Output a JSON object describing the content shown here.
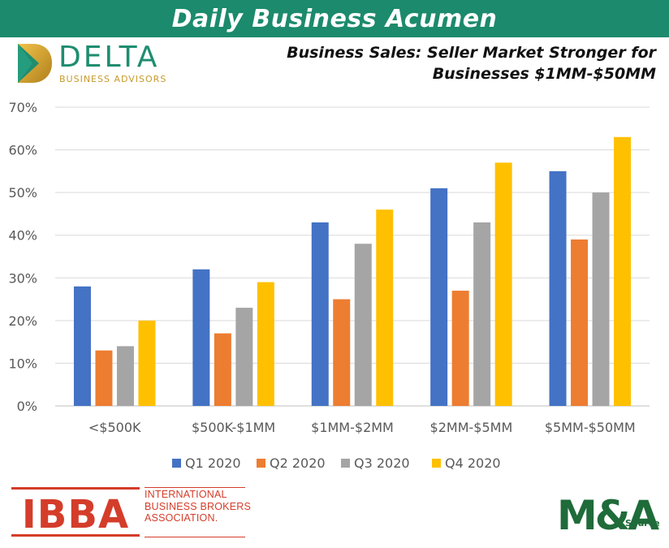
{
  "banner": {
    "title": "Daily Business Acumen"
  },
  "logo": {
    "name": "DELTA",
    "tagline": "BUSINESS ADVISORS"
  },
  "subtitle": {
    "line1": "Business Sales: Seller Market Stronger for",
    "line2": "Businesses $1MM-$50MM"
  },
  "footer": {
    "ibba_mark": "IBBA",
    "ibba_lines": [
      "INTERNATIONAL",
      "BUSINESS BROKERS",
      "ASSOCIATION."
    ],
    "ma_mark": "M&A",
    "ma_word": "Source"
  },
  "colors": {
    "banner": "#1c8a6c",
    "q1": "#4472c4",
    "q2": "#ed7d31",
    "q3": "#a5a5a5",
    "q4": "#ffc000"
  },
  "chart_data": {
    "type": "bar",
    "categories": [
      "<$500K",
      "$500K-$1MM",
      "$1MM-$2MM",
      "$2MM-$5MM",
      "$5MM-$50MM"
    ],
    "series": [
      {
        "name": "Q1 2020",
        "color": "#4472c4",
        "values": [
          28,
          32,
          43,
          51,
          55
        ]
      },
      {
        "name": "Q2 2020",
        "color": "#ed7d31",
        "values": [
          13,
          17,
          25,
          27,
          39
        ]
      },
      {
        "name": "Q3 2020",
        "color": "#a5a5a5",
        "values": [
          14,
          23,
          38,
          43,
          50
        ]
      },
      {
        "name": "Q4 2020",
        "color": "#ffc000",
        "values": [
          20,
          29,
          46,
          57,
          63
        ]
      }
    ],
    "yticks": [
      "0%",
      "10%",
      "20%",
      "30%",
      "40%",
      "50%",
      "60%",
      "70%"
    ],
    "ylim": [
      0,
      70
    ],
    "grid": true,
    "legend": "bottom"
  }
}
